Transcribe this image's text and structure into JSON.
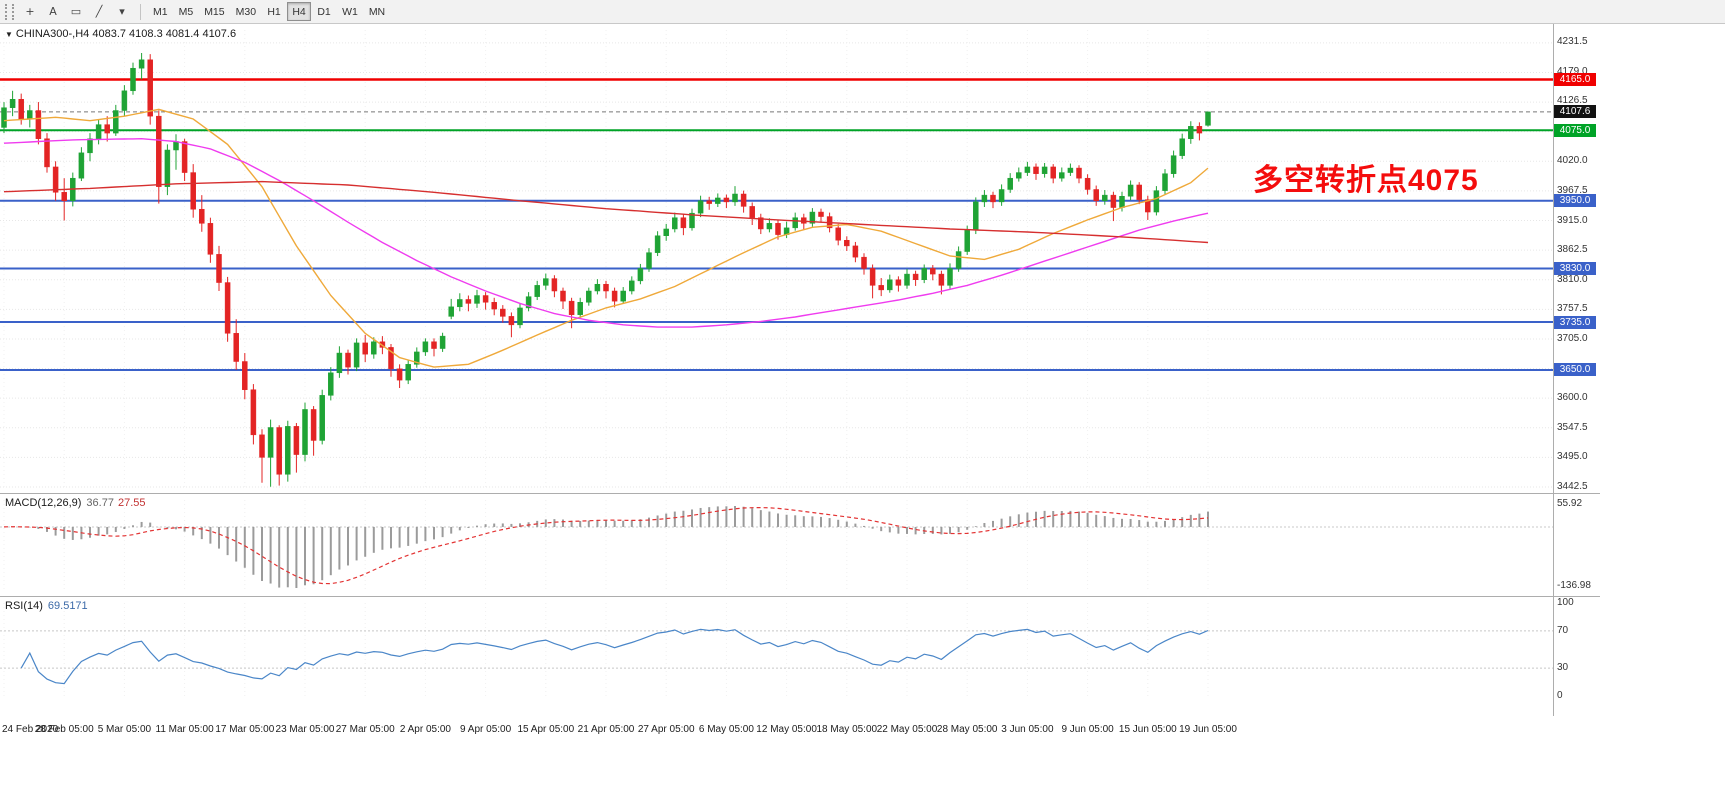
{
  "toolbar": {
    "tools": [
      {
        "name": "crosshair-icon",
        "glyph": "+"
      },
      {
        "name": "text-tool-icon",
        "glyph": "A"
      },
      {
        "name": "shapes-tool-icon",
        "glyph": "▭"
      },
      {
        "name": "trendline-tool-icon",
        "glyph": "╱"
      },
      {
        "name": "chevron-down-icon",
        "glyph": "▾"
      }
    ],
    "timeframes": [
      {
        "label": "M1",
        "active": false
      },
      {
        "label": "M5",
        "active": false
      },
      {
        "label": "M15",
        "active": false
      },
      {
        "label": "M30",
        "active": false
      },
      {
        "label": "H1",
        "active": false
      },
      {
        "label": "H4",
        "active": true
      },
      {
        "label": "D1",
        "active": false
      },
      {
        "label": "W1",
        "active": false
      },
      {
        "label": "MN",
        "active": false
      }
    ]
  },
  "main_chart": {
    "collapse_glyph": "▼",
    "symbol_timeframe": "CHINA300-,H4",
    "ohlc_text": "4083.7 4108.3 4081.4 4107.6",
    "annotation": "多空转折点4075",
    "current_price": "4107.6"
  },
  "colors": {
    "bull": "#1fa335",
    "bear": "#e32424",
    "grid": "#e7e7e7",
    "vgrid": "#f0f0f0",
    "resistance_red": "#f00000",
    "pivot_green": "#00a327",
    "support_blue": "#3a61c9",
    "current_line": "#777777",
    "ma_fast": "#efa93a",
    "ma_medium": "#ef3cef",
    "ma_slow": "#d62f2f",
    "macd_hist": "#9b9b9b",
    "macd_signal": "#e33333",
    "rsi_line": "#4a86c8",
    "level_dotted": "#c8c8c8"
  },
  "chart_data": {
    "type": "candlestick",
    "ylim": [
      3442.5,
      4231.5
    ],
    "grid_step": 52.5,
    "y_axis_labels": [
      "4231.5",
      "4179.0",
      "4126.5",
      "4020.0",
      "3967.5",
      "3915.0",
      "3862.5",
      "3810.0",
      "3757.5",
      "3705.0",
      "3600.0",
      "3547.5",
      "3495.0",
      "3442.5"
    ],
    "y_axis_label_prices": [
      4231.5,
      4179.0,
      4126.5,
      4020.0,
      3967.5,
      3915.0,
      3862.5,
      3810.0,
      3757.5,
      3705.0,
      3600.0,
      3547.5,
      3495.0,
      3442.5
    ],
    "price_tags": [
      {
        "label": "4165.0",
        "price": 4165.0,
        "color": "#f00000",
        "type": "resistance-line",
        "line_width": 2.5
      },
      {
        "label": "4107.6",
        "price": 4107.6,
        "color": "#111111",
        "type": "current-price",
        "line_width": 1
      },
      {
        "label": "4075.0",
        "price": 4075.0,
        "color": "#00a327",
        "type": "pivot-line",
        "line_width": 2
      },
      {
        "label": "3950.0",
        "price": 3950.0,
        "color": "#3a61c9",
        "type": "support-line",
        "line_width": 2
      },
      {
        "label": "3830.0",
        "price": 3830.0,
        "color": "#3a61c9",
        "type": "support-line",
        "line_width": 2
      },
      {
        "label": "3735.0",
        "price": 3735.0,
        "color": "#3a61c9",
        "type": "support-line",
        "line_width": 2
      },
      {
        "label": "3650.0",
        "price": 3650.0,
        "color": "#3a61c9",
        "type": "support-line",
        "line_width": 2
      }
    ],
    "x_labels": [
      "24 Feb 2020",
      "28 Feb 05:00",
      "5 Mar 05:00",
      "11 Mar 05:00",
      "17 Mar 05:00",
      "23 Mar 05:00",
      "27 Mar 05:00",
      "2 Apr 05:00",
      "9 Apr 05:00",
      "15 Apr 05:00",
      "21 Apr 05:00",
      "27 Apr 05:00",
      "6 May 05:00",
      "12 May 05:00",
      "18 May 05:00",
      "22 May 05:00",
      "28 May 05:00",
      "3 Jun 05:00",
      "9 Jun 05:00",
      "15 Jun 05:00",
      "19 Jun 05:00"
    ],
    "x_tick_every": 7,
    "candles": [
      [
        4080,
        4125,
        4070,
        4115
      ],
      [
        4115,
        4145,
        4100,
        4130
      ],
      [
        4130,
        4140,
        4085,
        4095
      ],
      [
        4095,
        4120,
        4080,
        4110
      ],
      [
        4110,
        4125,
        4050,
        4060
      ],
      [
        4060,
        4070,
        4000,
        4010
      ],
      [
        4010,
        4020,
        3950,
        3965
      ],
      [
        3965,
        3990,
        3915,
        3950
      ],
      [
        3950,
        4000,
        3940,
        3990
      ],
      [
        3990,
        4045,
        3985,
        4035
      ],
      [
        4035,
        4070,
        4020,
        4060
      ],
      [
        4060,
        4095,
        4050,
        4085
      ],
      [
        4085,
        4100,
        4055,
        4070
      ],
      [
        4070,
        4120,
        4065,
        4110
      ],
      [
        4110,
        4155,
        4100,
        4145
      ],
      [
        4145,
        4195,
        4138,
        4185
      ],
      [
        4185,
        4212,
        4165,
        4200
      ],
      [
        4200,
        4210,
        4085,
        4100
      ],
      [
        4100,
        4110,
        3945,
        3975
      ],
      [
        3975,
        4050,
        3960,
        4040
      ],
      [
        4040,
        4068,
        4005,
        4055
      ],
      [
        4055,
        4060,
        3985,
        4000
      ],
      [
        4000,
        4015,
        3920,
        3935
      ],
      [
        3935,
        3960,
        3895,
        3910
      ],
      [
        3910,
        3920,
        3840,
        3855
      ],
      [
        3855,
        3870,
        3790,
        3805
      ],
      [
        3805,
        3815,
        3700,
        3715
      ],
      [
        3715,
        3740,
        3650,
        3665
      ],
      [
        3665,
        3680,
        3598,
        3615
      ],
      [
        3615,
        3625,
        3518,
        3535
      ],
      [
        3535,
        3545,
        3450,
        3495
      ],
      [
        3495,
        3562,
        3443,
        3548
      ],
      [
        3548,
        3552,
        3445,
        3465
      ],
      [
        3465,
        3560,
        3452,
        3550
      ],
      [
        3550,
        3556,
        3468,
        3500
      ],
      [
        3500,
        3592,
        3488,
        3580
      ],
      [
        3580,
        3586,
        3498,
        3525
      ],
      [
        3525,
        3615,
        3518,
        3605
      ],
      [
        3605,
        3655,
        3596,
        3645
      ],
      [
        3645,
        3692,
        3636,
        3680
      ],
      [
        3680,
        3686,
        3642,
        3655
      ],
      [
        3655,
        3706,
        3648,
        3698
      ],
      [
        3698,
        3712,
        3664,
        3678
      ],
      [
        3678,
        3708,
        3670,
        3700
      ],
      [
        3700,
        3710,
        3678,
        3690
      ],
      [
        3690,
        3696,
        3638,
        3652
      ],
      [
        3652,
        3660,
        3618,
        3632
      ],
      [
        3632,
        3668,
        3625,
        3660
      ],
      [
        3660,
        3690,
        3654,
        3682
      ],
      [
        3682,
        3706,
        3675,
        3700
      ],
      [
        3700,
        3706,
        3674,
        3688
      ],
      [
        3688,
        3716,
        3682,
        3710
      ],
      [
        3745,
        3776,
        3740,
        3762
      ],
      [
        3762,
        3786,
        3754,
        3775
      ],
      [
        3775,
        3782,
        3754,
        3768
      ],
      [
        3768,
        3792,
        3760,
        3782
      ],
      [
        3782,
        3788,
        3757,
        3770
      ],
      [
        3770,
        3778,
        3747,
        3758
      ],
      [
        3758,
        3765,
        3734,
        3745
      ],
      [
        3745,
        3752,
        3708,
        3730
      ],
      [
        3730,
        3768,
        3724,
        3760
      ],
      [
        3760,
        3788,
        3754,
        3780
      ],
      [
        3780,
        3808,
        3774,
        3800
      ],
      [
        3800,
        3821,
        3792,
        3812
      ],
      [
        3812,
        3818,
        3779,
        3790
      ],
      [
        3790,
        3796,
        3758,
        3772
      ],
      [
        3772,
        3778,
        3724,
        3748
      ],
      [
        3748,
        3778,
        3741,
        3770
      ],
      [
        3770,
        3796,
        3764,
        3790
      ],
      [
        3790,
        3811,
        3784,
        3802
      ],
      [
        3802,
        3808,
        3777,
        3790
      ],
      [
        3790,
        3796,
        3761,
        3772
      ],
      [
        3772,
        3797,
        3767,
        3790
      ],
      [
        3790,
        3816,
        3784,
        3808
      ],
      [
        3808,
        3838,
        3802,
        3830
      ],
      [
        3830,
        3866,
        3824,
        3858
      ],
      [
        3858,
        3896,
        3852,
        3888
      ],
      [
        3888,
        3909,
        3879,
        3900
      ],
      [
        3900,
        3929,
        3894,
        3920
      ],
      [
        3920,
        3926,
        3889,
        3902
      ],
      [
        3902,
        3936,
        3897,
        3928
      ],
      [
        3928,
        3959,
        3921,
        3950
      ],
      [
        3950,
        3957,
        3934,
        3945
      ],
      [
        3945,
        3963,
        3939,
        3955
      ],
      [
        3955,
        3961,
        3937,
        3948
      ],
      [
        3948,
        3976,
        3941,
        3962
      ],
      [
        3962,
        3968,
        3929,
        3940
      ],
      [
        3940,
        3947,
        3907,
        3920
      ],
      [
        3920,
        3927,
        3891,
        3900
      ],
      [
        3900,
        3919,
        3894,
        3910
      ],
      [
        3910,
        3916,
        3881,
        3890
      ],
      [
        3890,
        3913,
        3884,
        3902
      ],
      [
        3902,
        3929,
        3897,
        3920
      ],
      [
        3920,
        3927,
        3899,
        3910
      ],
      [
        3910,
        3937,
        3904,
        3930
      ],
      [
        3930,
        3936,
        3911,
        3922
      ],
      [
        3922,
        3929,
        3894,
        3902
      ],
      [
        3902,
        3909,
        3871,
        3880
      ],
      [
        3880,
        3887,
        3861,
        3870
      ],
      [
        3870,
        3877,
        3841,
        3850
      ],
      [
        3850,
        3857,
        3819,
        3830
      ],
      [
        3830,
        3837,
        3777,
        3800
      ],
      [
        3800,
        3813,
        3781,
        3792
      ],
      [
        3792,
        3819,
        3787,
        3810
      ],
      [
        3810,
        3816,
        3789,
        3800
      ],
      [
        3800,
        3829,
        3794,
        3820
      ],
      [
        3820,
        3826,
        3799,
        3810
      ],
      [
        3810,
        3837,
        3804,
        3830
      ],
      [
        3830,
        3836,
        3809,
        3820
      ],
      [
        3820,
        3826,
        3784,
        3800
      ],
      [
        3800,
        3839,
        3794,
        3830
      ],
      [
        3830,
        3869,
        3824,
        3860
      ],
      [
        3860,
        3906,
        3854,
        3898
      ],
      [
        3898,
        3956,
        3891,
        3948
      ],
      [
        3948,
        3969,
        3939,
        3960
      ],
      [
        3960,
        3966,
        3937,
        3948
      ],
      [
        3948,
        3979,
        3941,
        3970
      ],
      [
        3970,
        3999,
        3964,
        3990
      ],
      [
        3990,
        4009,
        3984,
        4000
      ],
      [
        4000,
        4019,
        3994,
        4010
      ],
      [
        4010,
        4016,
        3987,
        3998
      ],
      [
        3998,
        4017,
        3991,
        4010
      ],
      [
        4010,
        4015,
        3981,
        3990
      ],
      [
        3990,
        4009,
        3984,
        4000
      ],
      [
        4000,
        4016,
        3994,
        4008
      ],
      [
        4008,
        4013,
        3981,
        3990
      ],
      [
        3990,
        3997,
        3961,
        3970
      ],
      [
        3970,
        3977,
        3941,
        3950
      ],
      [
        3950,
        3969,
        3943,
        3960
      ],
      [
        3960,
        3966,
        3914,
        3938
      ],
      [
        3938,
        3966,
        3931,
        3958
      ],
      [
        3958,
        3986,
        3951,
        3978
      ],
      [
        3978,
        3983,
        3944,
        3952
      ],
      [
        3952,
        3959,
        3916,
        3930
      ],
      [
        3930,
        3976,
        3924,
        3968
      ],
      [
        3968,
        4006,
        3961,
        3998
      ],
      [
        3998,
        4039,
        3991,
        4030
      ],
      [
        4030,
        4069,
        4024,
        4060
      ],
      [
        4060,
        4091,
        4051,
        4082
      ],
      [
        4082,
        4089,
        4057,
        4070
      ],
      [
        4083.7,
        4108.3,
        4081.4,
        4107.6
      ]
    ],
    "moving_averages": [
      {
        "name": "ma-fast-orange",
        "color": "#efa93a",
        "points": [
          [
            0,
            4092
          ],
          [
            6,
            4098
          ],
          [
            10,
            4092
          ],
          [
            14,
            4100
          ],
          [
            18,
            4112
          ],
          [
            22,
            4095
          ],
          [
            26,
            4050
          ],
          [
            30,
            3975
          ],
          [
            34,
            3870
          ],
          [
            38,
            3782
          ],
          [
            42,
            3715
          ],
          [
            46,
            3672
          ],
          [
            50,
            3655
          ],
          [
            54,
            3660
          ],
          [
            58,
            3685
          ],
          [
            62,
            3712
          ],
          [
            66,
            3738
          ],
          [
            70,
            3760
          ],
          [
            74,
            3776
          ],
          [
            78,
            3798
          ],
          [
            82,
            3828
          ],
          [
            86,
            3858
          ],
          [
            90,
            3886
          ],
          [
            94,
            3903
          ],
          [
            98,
            3908
          ],
          [
            102,
            3896
          ],
          [
            106,
            3874
          ],
          [
            110,
            3852
          ],
          [
            114,
            3846
          ],
          [
            118,
            3864
          ],
          [
            122,
            3892
          ],
          [
            126,
            3916
          ],
          [
            130,
            3938
          ],
          [
            134,
            3954
          ],
          [
            138,
            3982
          ],
          [
            140,
            4008
          ]
        ]
      },
      {
        "name": "ma-medium-magenta",
        "color": "#ef3cef",
        "points": [
          [
            0,
            4052
          ],
          [
            8,
            4058
          ],
          [
            16,
            4060
          ],
          [
            20,
            4055
          ],
          [
            24,
            4042
          ],
          [
            28,
            4018
          ],
          [
            32,
            3986
          ],
          [
            36,
            3950
          ],
          [
            40,
            3912
          ],
          [
            44,
            3876
          ],
          [
            48,
            3844
          ],
          [
            52,
            3815
          ],
          [
            56,
            3790
          ],
          [
            60,
            3768
          ],
          [
            64,
            3750
          ],
          [
            68,
            3738
          ],
          [
            72,
            3730
          ],
          [
            76,
            3726
          ],
          [
            80,
            3726
          ],
          [
            84,
            3730
          ],
          [
            88,
            3736
          ],
          [
            92,
            3744
          ],
          [
            96,
            3754
          ],
          [
            100,
            3764
          ],
          [
            104,
            3774
          ],
          [
            108,
            3786
          ],
          [
            112,
            3800
          ],
          [
            116,
            3818
          ],
          [
            120,
            3838
          ],
          [
            124,
            3858
          ],
          [
            128,
            3878
          ],
          [
            132,
            3898
          ],
          [
            136,
            3914
          ],
          [
            140,
            3928
          ]
        ]
      },
      {
        "name": "ma-slow-red",
        "color": "#d62f2f",
        "points": [
          [
            0,
            3966
          ],
          [
            10,
            3972
          ],
          [
            20,
            3980
          ],
          [
            30,
            3984
          ],
          [
            40,
            3978
          ],
          [
            50,
            3965
          ],
          [
            60,
            3950
          ],
          [
            70,
            3936
          ],
          [
            80,
            3925
          ],
          [
            90,
            3916
          ],
          [
            100,
            3908
          ],
          [
            110,
            3900
          ],
          [
            120,
            3894
          ],
          [
            130,
            3886
          ],
          [
            140,
            3876
          ]
        ]
      }
    ],
    "macd": {
      "name": "MACD(12,26,9)",
      "value_main": "36.77",
      "value_signal": "27.55",
      "scale_top": "55.92",
      "scale_bottom": "-136.98",
      "fast": 12,
      "slow": 26,
      "signal": 9
    },
    "rsi": {
      "name": "RSI(14)",
      "value": "69.5171",
      "scale_labels": [
        "100",
        "70",
        "30",
        "0"
      ],
      "scale_values": [
        100,
        70,
        30,
        0
      ],
      "levels": [
        70,
        30
      ],
      "period": 14
    }
  }
}
